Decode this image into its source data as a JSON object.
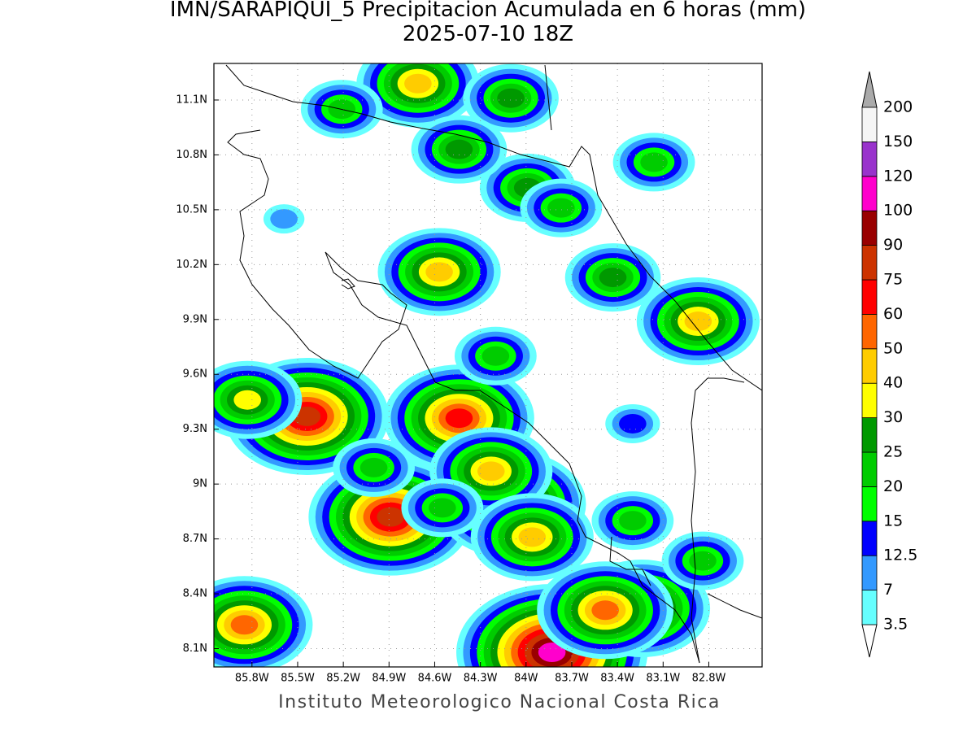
{
  "map": {
    "title": "IMN/SARAPIQUI_5 Precipitacion Acumulada en 6 horas (mm)",
    "subtitle": "2025-07-10 18Z",
    "footer": "Instituto Meteorologico Nacional Costa Rica",
    "xlim": [
      -86.05,
      -82.45
    ],
    "ylim": [
      8.0,
      11.3
    ],
    "xticks": [
      {
        "value": -85.8,
        "label": "85.8W"
      },
      {
        "value": -85.5,
        "label": "85.5W"
      },
      {
        "value": -85.2,
        "label": "85.2W"
      },
      {
        "value": -84.9,
        "label": "84.9W"
      },
      {
        "value": -84.6,
        "label": "84.6W"
      },
      {
        "value": -84.3,
        "label": "84.3W"
      },
      {
        "value": -84.0,
        "label": "84W"
      },
      {
        "value": -83.7,
        "label": "83.7W"
      },
      {
        "value": -83.4,
        "label": "83.4W"
      },
      {
        "value": -83.1,
        "label": "83.1W"
      },
      {
        "value": -82.8,
        "label": "82.8W"
      }
    ],
    "yticks": [
      {
        "value": 8.1,
        "label": "8.1N"
      },
      {
        "value": 8.4,
        "label": "8.4N"
      },
      {
        "value": 8.7,
        "label": "8.7N"
      },
      {
        "value": 9.0,
        "label": "9N"
      },
      {
        "value": 9.3,
        "label": "9.3N"
      },
      {
        "value": 9.6,
        "label": "9.6N"
      },
      {
        "value": 9.9,
        "label": "9.9N"
      },
      {
        "value": 10.2,
        "label": "10.2N"
      },
      {
        "value": 10.5,
        "label": "10.5N"
      },
      {
        "value": 10.8,
        "label": "10.8N"
      },
      {
        "value": 11.1,
        "label": "11.1N"
      }
    ],
    "grid": true,
    "colorbar": {
      "levels": [
        3.5,
        7,
        12.5,
        15,
        20,
        25,
        30,
        40,
        50,
        60,
        75,
        90,
        100,
        120,
        150,
        200
      ],
      "colors": [
        "#ffffff",
        "#66ffff",
        "#3399ff",
        "#0000ff",
        "#00ff00",
        "#00cc00",
        "#009900",
        "#ffff00",
        "#ffcc00",
        "#ff6600",
        "#ff0000",
        "#cc3300",
        "#990000",
        "#ff00cc",
        "#9933cc",
        "#f5f5f5",
        "#aaaaaa"
      ]
    },
    "cells": [
      {
        "lon": -83.83,
        "lat": 8.08,
        "peak": 100
      },
      {
        "lon": -84.89,
        "lat": 8.82,
        "peak": 75
      },
      {
        "lon": -84.44,
        "lat": 9.36,
        "peak": 60
      },
      {
        "lon": -84.1,
        "lat": 8.89,
        "peak": 60
      },
      {
        "lon": -84.23,
        "lat": 9.07,
        "peak": 40
      },
      {
        "lon": -85.44,
        "lat": 9.37,
        "peak": 75
      },
      {
        "lon": -85.85,
        "lat": 8.23,
        "peak": 50
      },
      {
        "lon": -83.24,
        "lat": 8.32,
        "peak": 50
      },
      {
        "lon": -83.48,
        "lat": 8.31,
        "peak": 50
      },
      {
        "lon": -83.96,
        "lat": 8.71,
        "peak": 40
      },
      {
        "lon": -85.83,
        "lat": 9.46,
        "peak": 30
      },
      {
        "lon": -84.71,
        "lat": 11.19,
        "peak": 40
      },
      {
        "lon": -84.57,
        "lat": 10.16,
        "peak": 40
      },
      {
        "lon": -83.43,
        "lat": 10.13,
        "peak": 25
      },
      {
        "lon": -82.87,
        "lat": 9.89,
        "peak": 40
      },
      {
        "lon": -83.99,
        "lat": 10.62,
        "peak": 25
      },
      {
        "lon": -84.1,
        "lat": 11.11,
        "peak": 25
      },
      {
        "lon": -84.44,
        "lat": 10.83,
        "peak": 25
      },
      {
        "lon": -85.21,
        "lat": 11.05,
        "peak": 20
      },
      {
        "lon": -83.16,
        "lat": 10.76,
        "peak": 20
      },
      {
        "lon": -83.77,
        "lat": 10.51,
        "peak": 20
      },
      {
        "lon": -85.0,
        "lat": 9.09,
        "peak": 20
      },
      {
        "lon": -84.55,
        "lat": 8.87,
        "peak": 20
      },
      {
        "lon": -85.59,
        "lat": 10.45,
        "peak": 7
      },
      {
        "lon": -83.3,
        "lat": 9.33,
        "peak": 12.5
      },
      {
        "lon": -82.84,
        "lat": 8.58,
        "peak": 20
      },
      {
        "lon": -84.2,
        "lat": 9.7,
        "peak": 20
      },
      {
        "lon": -83.3,
        "lat": 8.8,
        "peak": 20
      }
    ]
  }
}
